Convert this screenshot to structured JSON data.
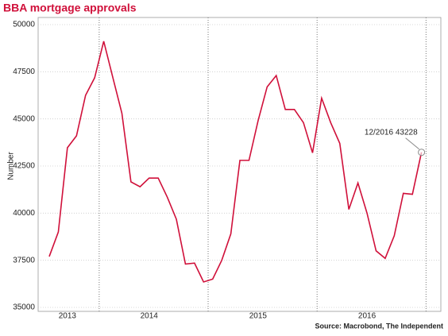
{
  "chart_data": {
    "type": "line",
    "title": "BBA mortgage approvals",
    "ylabel": "Number",
    "source": "Source: Macrobond, The Independent",
    "annotation": "12/2016 43228",
    "categories": [
      null,
      null,
      "2013",
      null,
      null,
      null,
      null,
      null,
      null,
      null,
      null,
      "2014",
      null,
      null,
      null,
      null,
      null,
      null,
      null,
      null,
      null,
      null,
      null,
      "2015",
      null,
      null,
      null,
      null,
      null,
      null,
      null,
      null,
      null,
      null,
      null,
      "2016",
      null,
      null,
      null,
      null,
      null,
      null
    ],
    "series": [
      {
        "name": "BBA mortgage approvals",
        "color": "#d0103a",
        "values": [
          37700,
          39000,
          43470,
          44100,
          46250,
          47180,
          49120,
          47200,
          45300,
          41660,
          41400,
          41860,
          41860,
          40850,
          39680,
          37300,
          37350,
          36350,
          36500,
          37500,
          38900,
          42800,
          42800,
          44900,
          46700,
          47300,
          45500,
          45500,
          44800,
          43200,
          46100,
          44800,
          43700,
          40200,
          41600,
          40000,
          38000,
          37600,
          38800,
          41050,
          41000,
          43228
        ]
      }
    ],
    "ylim": [
      35000,
      50000
    ],
    "yticks": [
      35000,
      37500,
      40000,
      42500,
      45000,
      47500,
      50000
    ],
    "grid": true
  }
}
